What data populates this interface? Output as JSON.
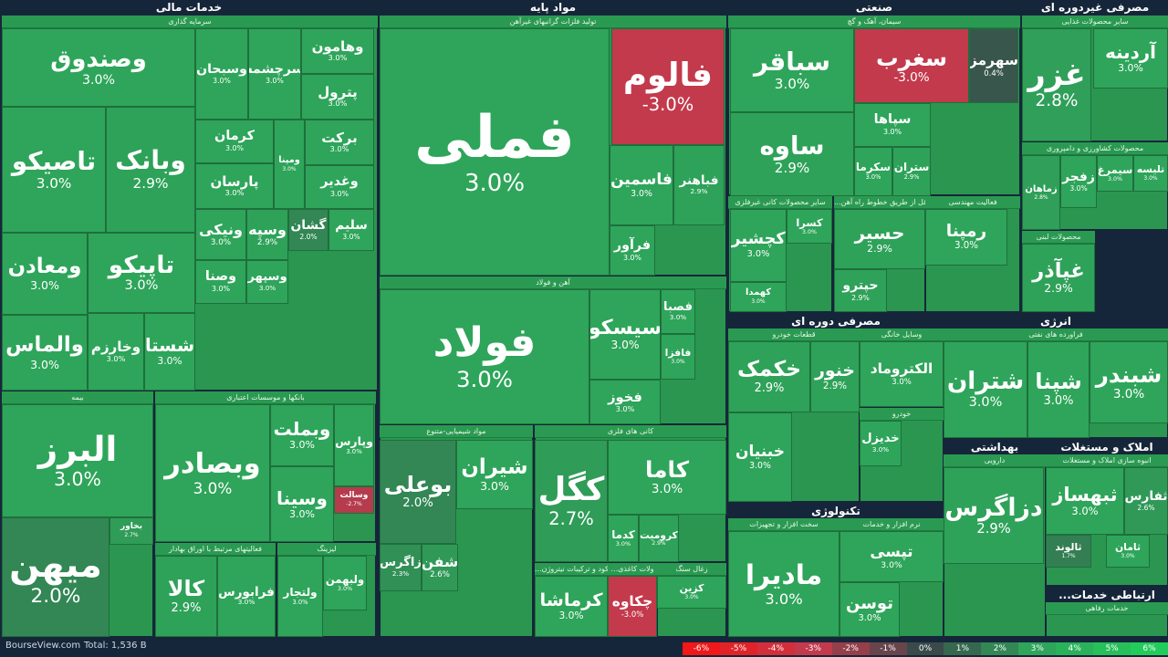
{
  "sectors": [
    {
      "title": "خدمات مالی",
      "groups": [
        {
          "title": "سرمایه گذاری",
          "tiles": [
            {
              "symbol": "وصندوق",
              "change": "3.0%"
            },
            {
              "symbol": "تاصیکو",
              "change": "3.0%"
            },
            {
              "symbol": "وبانک",
              "change": "2.9%"
            },
            {
              "symbol": "ومعادن",
              "change": "3.0%"
            },
            {
              "symbol": "والماس",
              "change": "3.0%"
            },
            {
              "symbol": "تاپیکو",
              "change": "3.0%"
            },
            {
              "symbol": "وخارزم",
              "change": "3.0%"
            },
            {
              "symbol": "شستا",
              "change": "3.0%"
            },
            {
              "symbol": "سرچشمه",
              "change": "3.0%"
            },
            {
              "symbol": "وسبحان",
              "change": "3.0%"
            },
            {
              "symbol": "وهامون",
              "change": "3.0%"
            },
            {
              "symbol": "پترول",
              "change": "3.0%"
            },
            {
              "symbol": "کرمان",
              "change": "3.0%"
            },
            {
              "symbol": "پارسان",
              "change": "3.0%"
            },
            {
              "symbol": "ومپنا",
              "change": "3.0%"
            },
            {
              "symbol": "برکت",
              "change": "3.0%"
            },
            {
              "symbol": "وغدیر",
              "change": "3.0%"
            },
            {
              "symbol": "ونیکی",
              "change": "3.0%"
            },
            {
              "symbol": "وسپه",
              "change": "2.9%"
            },
            {
              "symbol": "گشان",
              "change": "2.0%"
            },
            {
              "symbol": "سلیم",
              "change": "3.0%"
            },
            {
              "symbol": "وصنا",
              "change": "3.0%"
            },
            {
              "symbol": "وسپهر",
              "change": "3.0%"
            }
          ]
        },
        {
          "title": "بیمه",
          "tiles": [
            {
              "symbol": "البرز",
              "change": "3.0%"
            },
            {
              "symbol": "میهن",
              "change": "2.0%"
            },
            {
              "symbol": "بخاور",
              "change": "2.7%"
            }
          ]
        },
        {
          "title": "بانکها و موسسات اعتباری",
          "tiles": [
            {
              "symbol": "وبصادر",
              "change": "3.0%"
            },
            {
              "symbol": "وبملت",
              "change": "3.0%"
            },
            {
              "symbol": "وپارس",
              "change": "3.0%"
            },
            {
              "symbol": "وسینا",
              "change": "3.0%"
            },
            {
              "symbol": "وسالت",
              "change": "-2.7%"
            }
          ]
        },
        {
          "title": "فعالیتهای مرتبط با اوراق بهادار",
          "tiles": [
            {
              "symbol": "کالا",
              "change": "2.9%"
            },
            {
              "symbol": "فرابورس",
              "change": "3.0%"
            }
          ]
        },
        {
          "title": "لیزینگ",
          "tiles": [
            {
              "symbol": "ولتجار",
              "change": "3.0%"
            },
            {
              "symbol": "ولبهمن",
              "change": "3.0%"
            }
          ]
        }
      ]
    },
    {
      "title": "مواد پایه",
      "groups": [
        {
          "title": "تولید فلزات گرانبهای غیرآهن",
          "tiles": [
            {
              "symbol": "فملی",
              "change": "3.0%"
            },
            {
              "symbol": "فالوم",
              "change": "-3.0%"
            },
            {
              "symbol": "فاسمین",
              "change": "3.0%"
            },
            {
              "symbol": "فباهنر",
              "change": "2.9%"
            },
            {
              "symbol": "فرآور",
              "change": "3.0%"
            }
          ]
        },
        {
          "title": "آهن و فولاد",
          "tiles": [
            {
              "symbol": "فولاد",
              "change": "3.0%"
            },
            {
              "symbol": "سیسکو",
              "change": "3.0%"
            },
            {
              "symbol": "فخوز",
              "change": "3.0%"
            },
            {
              "symbol": "فصبا",
              "change": "3.0%"
            },
            {
              "symbol": "فافزا",
              "change": "3.0%"
            }
          ]
        },
        {
          "title": "مواد شیمیایی-متنوع",
          "tiles": [
            {
              "symbol": "بوعلی",
              "change": "2.0%"
            },
            {
              "symbol": "شیران",
              "change": "3.0%"
            },
            {
              "symbol": "زاگرس",
              "change": "2.3%"
            },
            {
              "symbol": "شفن",
              "change": "2.6%"
            }
          ]
        },
        {
          "title": "کانی های فلزی",
          "tiles": [
            {
              "symbol": "کگل",
              "change": "2.7%"
            },
            {
              "symbol": "کاما",
              "change": "3.0%"
            },
            {
              "symbol": "کدما",
              "change": "3.0%"
            },
            {
              "symbol": "کرومیت",
              "change": "2.9%"
            }
          ]
        },
        {
          "title": "...کود و ترکیبات نیتروژن",
          "tiles": [
            {
              "symbol": "کرماشا",
              "change": "3.0%"
            }
          ]
        },
        {
          "title": "...ولات کاغذی",
          "tiles": [
            {
              "symbol": "چکاوه",
              "change": "-3.0%"
            }
          ]
        },
        {
          "title": "زغال سنگ",
          "tiles": [
            {
              "symbol": "کزین",
              "change": "3.0%"
            }
          ]
        }
      ]
    },
    {
      "title": "صنعتی",
      "groups": [
        {
          "title": "سیمان، آهک و گچ",
          "tiles": [
            {
              "symbol": "سباقر",
              "change": "3.0%"
            },
            {
              "symbol": "ساوه",
              "change": "2.9%"
            },
            {
              "symbol": "سغرب",
              "change": "-3.0%"
            },
            {
              "symbol": "سهرمز",
              "change": "0.4%"
            },
            {
              "symbol": "سپاها",
              "change": "3.0%"
            },
            {
              "symbol": "سکرما",
              "change": "3.0%"
            },
            {
              "symbol": "ستران",
              "change": "2.9%"
            }
          ]
        },
        {
          "title": "سایر محصولات کانی غیرفلزی",
          "tiles": [
            {
              "symbol": "کچشیر",
              "change": "3.0%"
            },
            {
              "symbol": "کسرا",
              "change": "3.0%"
            },
            {
              "symbol": "کهمدا",
              "change": "3.0%"
            }
          ]
        },
        {
          "title": "...قل از طریق خطوط راه آهن",
          "tiles": [
            {
              "symbol": "حسیر",
              "change": "2.9%"
            },
            {
              "symbol": "حپترو",
              "change": "2.9%"
            }
          ]
        },
        {
          "title": "فعالیت مهندسی",
          "tiles": [
            {
              "symbol": "رمپنا",
              "change": "3.0%"
            }
          ]
        }
      ]
    },
    {
      "title": "مصرفی غیردوره ای",
      "groups": [
        {
          "title": "سایر محصولات غذایی",
          "tiles": [
            {
              "symbol": "آردینه",
              "change": "3.0%"
            },
            {
              "symbol": "غزر",
              "change": "2.8%"
            }
          ]
        },
        {
          "title": "محصولات کشاورزی و دامپروری",
          "tiles": [
            {
              "symbol": "زماهان",
              "change": "2.8%"
            },
            {
              "symbol": "زفجر",
              "change": "3.0%"
            },
            {
              "symbol": "سیمرغ",
              "change": "3.0%"
            },
            {
              "symbol": "تلیسه",
              "change": "3.0%"
            }
          ]
        },
        {
          "title": "محصولات لبنی",
          "tiles": [
            {
              "symbol": "غپآذر",
              "change": "2.9%"
            }
          ]
        }
      ]
    },
    {
      "title": "مصرفی دوره ای",
      "groups": [
        {
          "title": "قطعات خودرو",
          "tiles": [
            {
              "symbol": "خکمک",
              "change": "2.9%"
            },
            {
              "symbol": "خنور",
              "change": "2.9%"
            },
            {
              "symbol": "خبنیان",
              "change": "3.0%"
            }
          ]
        },
        {
          "title": "وسایل خانگی",
          "tiles": [
            {
              "symbol": "الکتروماد",
              "change": "3.0%"
            }
          ]
        },
        {
          "title": "خودرو",
          "tiles": [
            {
              "symbol": "خدیزل",
              "change": "3.0%"
            }
          ]
        }
      ]
    },
    {
      "title": "انرژی",
      "groups": [
        {
          "title": "فراورده های نفتی",
          "tiles": [
            {
              "symbol": "شتران",
              "change": "3.0%"
            },
            {
              "symbol": "شپنا",
              "change": "3.0%"
            },
            {
              "symbol": "شبندر",
              "change": "3.0%"
            }
          ]
        }
      ]
    },
    {
      "title": "بهداشتی",
      "groups": [
        {
          "title": "دارویی",
          "tiles": [
            {
              "symbol": "دزاگرس",
              "change": "2.9%"
            }
          ]
        }
      ]
    },
    {
      "title": "املاک و مستغلات",
      "groups": [
        {
          "title": "انبوه سازی املاک و مستغلات",
          "tiles": [
            {
              "symbol": "ثبهساز",
              "change": "3.0%"
            },
            {
              "symbol": "ثفارس",
              "change": "2.6%"
            },
            {
              "symbol": "ثالوند",
              "change": "1.7%"
            },
            {
              "symbol": "ثامان",
              "change": "3.0%"
            }
          ]
        }
      ]
    },
    {
      "title": "تکنولوژی",
      "groups": [
        {
          "title": "سخت افزار و تجهیزات",
          "tiles": [
            {
              "symbol": "مادیرا",
              "change": "3.0%"
            }
          ]
        },
        {
          "title": "نرم افزار و خدمات",
          "tiles": [
            {
              "symbol": "تپسی",
              "change": "3.0%"
            },
            {
              "symbol": "توسن",
              "change": "3.0%"
            }
          ]
        }
      ]
    },
    {
      "title": "...ارتباطی خدمات رفاهی",
      "groups": [
        {
          "title": "خدمات رفاهی",
          "tiles": []
        }
      ]
    }
  ],
  "footer": {
    "brand": "BourseView.com",
    "total": "Total: 1,536 B",
    "legend": [
      "-6%",
      "-5%",
      "-4%",
      "-3%",
      "-2%",
      "-1%",
      "0%",
      "1%",
      "2%",
      "3%",
      "4%",
      "5%",
      "6%"
    ]
  }
}
